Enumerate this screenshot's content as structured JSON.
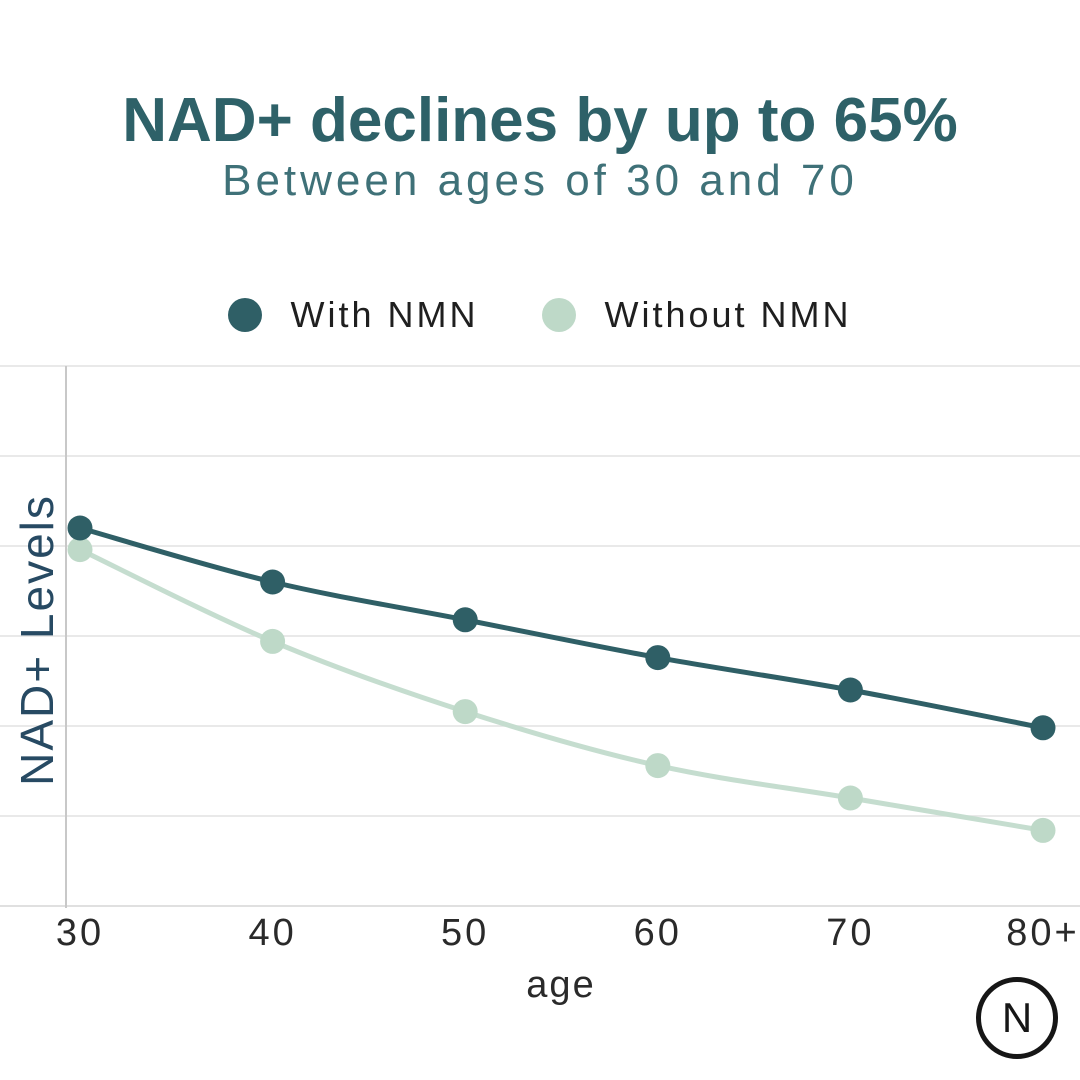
{
  "page": {
    "background": "#ffffff"
  },
  "header": {
    "title": "NAD+ declines by up to 65%",
    "subtitle": "Between ages of 30 and 70"
  },
  "logo": {
    "letter": "N"
  },
  "colors": {
    "title_text": "#2e6168",
    "subtitle_text": "#3f7178",
    "y_axis_label_text": "#274a63",
    "tick_text": "#2a2a2a",
    "gridline": "#e2e2e2",
    "bottom_axis_line": "#d6d6d6",
    "vertical_axis_line": "#c8c8c8",
    "series_with_nmn": "#2f5f66",
    "series_without_nmn_line": "#c5ddcf",
    "series_without_nmn_point": "#bed9c8"
  },
  "chart_data": {
    "type": "line",
    "title": "NAD+ declines by up to 65%",
    "subtitle": "Between ages of 30 and 70",
    "xlabel": "age",
    "ylabel": "NAD+ Levels",
    "x_categories": [
      "30",
      "40",
      "50",
      "60",
      "70",
      "80+"
    ],
    "series": [
      {
        "name": "With NMN",
        "line_color": "#2f5f66",
        "point_color": "#2f5f66",
        "values": [
          70,
          60,
          53,
          46,
          40,
          33
        ]
      },
      {
        "name": "Without NMN",
        "line_color": "#c5ddcf",
        "point_color": "#bed9c8",
        "values": [
          66,
          49,
          36,
          26,
          20,
          14
        ]
      }
    ],
    "ylim": [
      0,
      100
    ],
    "n_gridlines": 7,
    "grid": true,
    "legend_position": "top",
    "y_tick_labels_shown": false
  }
}
